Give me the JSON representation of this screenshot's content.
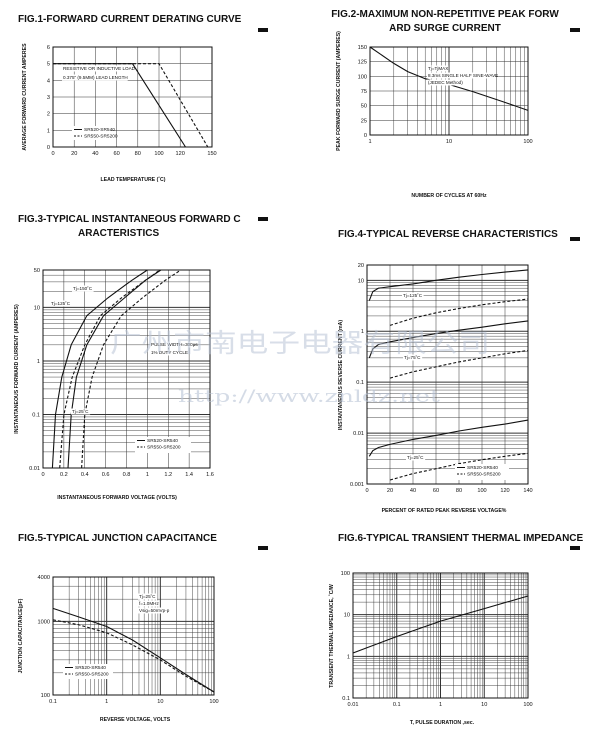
{
  "watermark": {
    "company": "广州市南电子电器有限公司",
    "url": "http://www.znldz.net"
  },
  "chart_data": [
    {
      "type": "line",
      "title": "FIG.1-FORWARD CURRENT DERATING CURVE",
      "xlabel": "LEAD TEMPERATURE (˚C)",
      "ylabel": "AVERAGE FORWARD CURRENT AMPERES",
      "x_scale": "linear",
      "y_scale": "linear",
      "xlim": [
        0,
        150
      ],
      "ylim": [
        0,
        6
      ],
      "xticks": [
        0,
        20,
        40,
        60,
        80,
        100,
        120,
        150
      ],
      "yticks": [
        0,
        1,
        2,
        3,
        4,
        5,
        6
      ],
      "xtick_labels": [
        "0",
        "20",
        "40",
        "60",
        "80",
        "100",
        "120",
        "150"
      ],
      "ytick_labels": [
        "0",
        "1",
        "2",
        "3",
        "4",
        "5",
        "6"
      ],
      "grid": true,
      "annotations": [
        "RESISTIVE OR INDUCTIVE LOAD",
        "0.375\" (9.5MM) LEAD LENGTH"
      ],
      "legend": {
        "placement": "bottom-left",
        "entries": [
          "SR520-SR540",
          "SR550-SR5200"
        ]
      },
      "series": [
        {
          "name": "SR520-SR540",
          "style": "solid",
          "x": [
            0,
            75,
            125
          ],
          "y": [
            5,
            5,
            0
          ]
        },
        {
          "name": "SR550-SR5200",
          "style": "dashed",
          "x": [
            0,
            100,
            146
          ],
          "y": [
            5,
            5,
            0
          ]
        }
      ]
    },
    {
      "type": "line",
      "title": "FIG.2-MAXIMUM NON-REPETITIVE PEAK FORWARD SURGE CURRENT",
      "xlabel": "NUMBER OF CYCLES AT 60Hz",
      "ylabel": "PEAK FORWARD SURGE CURRENT (AMPERES)",
      "x_scale": "log",
      "y_scale": "linear",
      "xlim": [
        1,
        100
      ],
      "ylim": [
        0,
        150
      ],
      "xticks": [
        1,
        10,
        100
      ],
      "yticks": [
        0,
        25,
        50,
        75,
        100,
        125,
        150
      ],
      "xtick_labels": [
        "1",
        "10",
        "100"
      ],
      "ytick_labels": [
        "0",
        "25",
        "50",
        "75",
        "100",
        "125",
        "150"
      ],
      "grid": true,
      "annotations": [
        "Tj=TjMAX",
        "8.3ms SINGLE HALF SINE-WAVE",
        "(JEDEC Method)"
      ],
      "series": [
        {
          "name": "",
          "style": "solid",
          "x": [
            1,
            2,
            3,
            5,
            10,
            20,
            50,
            100
          ],
          "y": [
            150,
            122,
            108,
            96,
            86,
            74,
            56,
            42
          ]
        }
      ]
    },
    {
      "type": "line",
      "title": "FIG.3-TYPICAL INSTANTANEOUS FORWARD CHARACTERISTICS",
      "xlabel": "INSTANTANEOUS FORWARD VOLTAGE (VOLTS)",
      "ylabel": "INSTANTANEOUS FORWARD CURRENT (AMPERES)",
      "x_scale": "linear",
      "y_scale": "log",
      "xlim": [
        0,
        1.6
      ],
      "ylim": [
        0.01,
        50
      ],
      "xticks": [
        0,
        0.2,
        0.4,
        0.6,
        0.8,
        1.0,
        1.2,
        1.4,
        1.6
      ],
      "yticks": [
        0.01,
        0.1,
        1,
        10,
        50
      ],
      "xtick_labels": [
        "0",
        "0.2",
        "0.4",
        "0.6",
        "0.8",
        "1",
        "1.2",
        "1.4",
        "1.6"
      ],
      "ytick_labels": [
        "0.01",
        "0.1",
        "1",
        "10",
        "50"
      ],
      "grid": true,
      "annotations": [
        "Tj=150˚C",
        "Tj=125˚C",
        "Tj=25˚C",
        "PULSE WIDTH=300μs",
        "1% DUTY CYCLE"
      ],
      "legend": {
        "placement": "bottom-right",
        "entries": [
          "SR520-SR540",
          "SR550-SR5200"
        ]
      },
      "series": [
        {
          "name": "SR520-SR540",
          "label": "Tj=150˚C",
          "style": "solid",
          "x": [
            0.09,
            0.12,
            0.18,
            0.27,
            0.42,
            0.62,
            0.85,
            1.0
          ],
          "y": [
            0.01,
            0.1,
            0.5,
            2,
            7,
            15,
            32,
            50
          ]
        },
        {
          "name": "SR550-SR5200",
          "label": "Tj=150˚C",
          "style": "dashed",
          "x": [
            0.16,
            0.2,
            0.28,
            0.4,
            0.55,
            0.75,
            0.98,
            1.12
          ],
          "y": [
            0.01,
            0.1,
            0.5,
            2,
            7,
            15,
            32,
            50
          ]
        },
        {
          "name": "SR520-SR540",
          "label": "Tj=25˚C",
          "style": "solid",
          "x": [
            0.24,
            0.27,
            0.32,
            0.42,
            0.58,
            0.78,
            0.98,
            1.13
          ],
          "y": [
            0.01,
            0.1,
            0.5,
            2,
            7,
            15,
            32,
            50
          ]
        },
        {
          "name": "SR550-SR5200",
          "label": "Tj=25˚C",
          "style": "dashed",
          "x": [
            0.37,
            0.4,
            0.47,
            0.58,
            0.75,
            0.95,
            1.17,
            1.32
          ],
          "y": [
            0.01,
            0.1,
            0.5,
            2,
            7,
            15,
            32,
            50
          ]
        }
      ]
    },
    {
      "type": "line",
      "title": "FIG.4-TYPICAL REVERSE CHARACTERISTICS",
      "xlabel": "PERCENT OF RATED PEAK REVERSE VOLTAGE%",
      "ylabel": "INSTANTANEOUS REVERSE CURRENT (mA)",
      "x_scale": "linear",
      "y_scale": "log",
      "xlim": [
        0,
        140
      ],
      "ylim": [
        0.001,
        20
      ],
      "xticks": [
        0,
        20,
        40,
        60,
        80,
        100,
        120,
        140
      ],
      "yticks": [
        0.001,
        0.01,
        0.1,
        1,
        10,
        20
      ],
      "xtick_labels": [
        "0",
        "20",
        "40",
        "60",
        "80",
        "100",
        "120",
        "140"
      ],
      "ytick_labels": [
        "0.001",
        "0.01",
        "0.1",
        "1",
        "10",
        "20"
      ],
      "grid": true,
      "annotations": [
        "Tj=125˚C",
        "Tj=75˚C",
        "Tj=25˚C"
      ],
      "legend": {
        "placement": "bottom-right",
        "entries": [
          "SR520-SR540",
          "SR550-SR5200"
        ]
      },
      "series": [
        {
          "name": "SR520-SR540",
          "label": "Tj=125˚C",
          "style": "solid",
          "x": [
            2,
            5,
            10,
            20,
            40,
            60,
            80,
            100,
            120,
            140
          ],
          "y": [
            4,
            6,
            7,
            7.5,
            8.5,
            10,
            11.5,
            13,
            14.5,
            16
          ]
        },
        {
          "name": "SR550-SR5200",
          "label": "Tj=125˚C",
          "style": "dashed",
          "x": [
            20,
            40,
            60,
            80,
            100,
            120,
            140
          ],
          "y": [
            1.3,
            1.8,
            2.3,
            2.8,
            3.3,
            3.8,
            4.3
          ]
        },
        {
          "name": "SR520-SR540",
          "label": "Tj=75˚C",
          "style": "solid",
          "x": [
            2,
            5,
            10,
            20,
            40,
            60,
            80,
            100,
            120,
            140
          ],
          "y": [
            0.3,
            0.45,
            0.55,
            0.62,
            0.75,
            0.9,
            1.05,
            1.2,
            1.4,
            1.6
          ]
        },
        {
          "name": "SR550-SR5200",
          "label": "Tj=75˚C",
          "style": "dashed",
          "x": [
            20,
            40,
            60,
            80,
            100,
            120,
            140
          ],
          "y": [
            0.12,
            0.16,
            0.2,
            0.25,
            0.3,
            0.36,
            0.42
          ]
        },
        {
          "name": "SR520-SR540",
          "label": "Tj=25˚C",
          "style": "solid",
          "x": [
            2,
            5,
            10,
            20,
            40,
            60,
            80,
            100,
            120,
            140
          ],
          "y": [
            0.0035,
            0.0045,
            0.0052,
            0.006,
            0.0075,
            0.009,
            0.011,
            0.013,
            0.015,
            0.018
          ]
        },
        {
          "name": "SR550-SR5200",
          "label": "Tj=25˚C",
          "style": "dashed",
          "x": [
            20,
            40,
            60,
            80,
            100,
            120,
            140
          ],
          "y": [
            0.0012,
            0.0016,
            0.002,
            0.0025,
            0.003,
            0.0035,
            0.004
          ]
        }
      ]
    },
    {
      "type": "line",
      "title": "FIG.5-TYPICAL JUNCTION CAPACITANCE",
      "xlabel": "REVERSE VOLTAGE, VOLTS",
      "ylabel": "JUNCTION CAPACITANCE(pF)",
      "x_scale": "log",
      "y_scale": "log",
      "xlim": [
        0.1,
        100
      ],
      "ylim": [
        100,
        4000
      ],
      "xticks": [
        0.1,
        1,
        10,
        100
      ],
      "yticks": [
        100,
        1000,
        4000
      ],
      "xtick_labels": [
        "0.1",
        "1",
        "10",
        "100"
      ],
      "ytick_labels": [
        "100",
        "1000",
        "4000"
      ],
      "grid": true,
      "annotations": [
        "Tj=25˚C",
        "f=1.0MHz",
        "Vsig=50mVp-p"
      ],
      "legend": {
        "placement": "bottom-left",
        "entries": [
          "SR520-SR540",
          "SR550-SR5200"
        ]
      },
      "series": [
        {
          "name": "SR520-SR540",
          "style": "solid",
          "x": [
            0.1,
            0.3,
            1,
            3,
            10,
            30,
            100
          ],
          "y": [
            1500,
            1150,
            850,
            560,
            320,
            190,
            110
          ]
        },
        {
          "name": "SR550-SR5200",
          "style": "dashed",
          "x": [
            0.1,
            0.3,
            1,
            3,
            10,
            30,
            100
          ],
          "y": [
            1050,
            900,
            700,
            480,
            300,
            180,
            110
          ]
        }
      ]
    },
    {
      "type": "line",
      "title": "FIG.6-TYPICAL TRANSIENT THERMAL IMPEDANCE",
      "xlabel": "T, PULSE DURATION ,sec.",
      "ylabel": "TRANSIENT THERMAL IMPEDANCE, ˚C/W",
      "x_scale": "log",
      "y_scale": "log",
      "xlim": [
        0.01,
        100
      ],
      "ylim": [
        0.1,
        100
      ],
      "xticks": [
        0.01,
        0.1,
        1,
        10,
        100
      ],
      "yticks": [
        0.1,
        1,
        10,
        100
      ],
      "xtick_labels": [
        "0.01",
        "0.1",
        "1",
        "10",
        "100"
      ],
      "ytick_labels": [
        "0.1",
        "1",
        "10",
        "100"
      ],
      "grid": true,
      "series": [
        {
          "name": "",
          "style": "solid",
          "x": [
            0.01,
            0.1,
            1,
            10,
            100
          ],
          "y": [
            1.2,
            3,
            7,
            14,
            28
          ]
        }
      ]
    }
  ]
}
